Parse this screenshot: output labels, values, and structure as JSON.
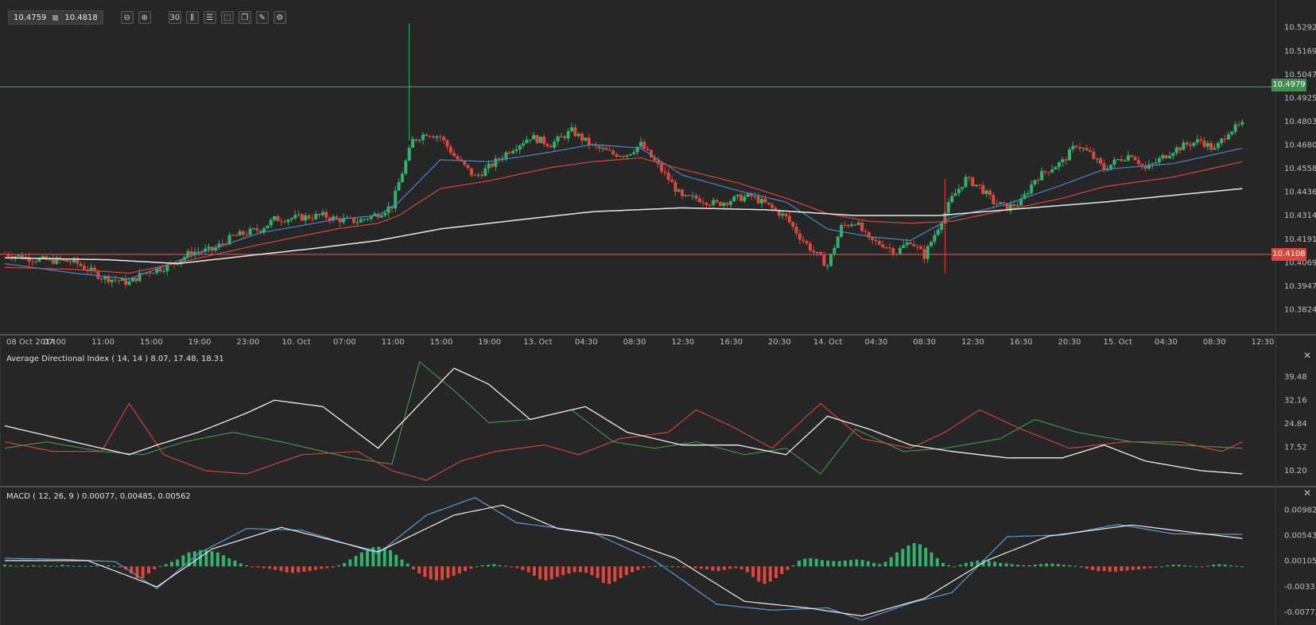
{
  "toolbar": {
    "bid": "10.4759",
    "ask": "10.4818",
    "buttons": [
      {
        "name": "zoom-out-icon",
        "glyph": "⊖"
      },
      {
        "name": "zoom-in-icon",
        "glyph": "⊕"
      },
      {
        "name": "timeframe-button",
        "glyph": "30"
      },
      {
        "name": "candlestick-icon",
        "glyph": "⫼"
      },
      {
        "name": "indicators-icon",
        "glyph": "☰"
      },
      {
        "name": "chart-template-icon",
        "glyph": "⬚"
      },
      {
        "name": "layers-icon",
        "glyph": "❐"
      },
      {
        "name": "draw-tool-icon",
        "glyph": "✎"
      },
      {
        "name": "settings-pen-icon",
        "glyph": "⚙"
      }
    ]
  },
  "price_axis": {
    "ticks": [
      "10.5292",
      "10.5169",
      "10.5047",
      "10.4925",
      "10.4803",
      "10.4680",
      "10.4558",
      "10.4436",
      "10.4314",
      "10.4191",
      "10.4069",
      "10.3947",
      "10.3824"
    ],
    "resistance": "10.4979",
    "support": "10.4108",
    "resistance_color": "#3f8f4f",
    "support_color": "#d9463b"
  },
  "time_axis": [
    "08 Oct 2014",
    "07:00",
    "11:00",
    "15:00",
    "19:00",
    "23:00",
    "10. Oct",
    "07:00",
    "11:00",
    "15:00",
    "19:00",
    "13. Oct",
    "04:30",
    "08:30",
    "12:30",
    "16:30",
    "20:30",
    "14. Oct",
    "04:30",
    "08:30",
    "12:30",
    "16:30",
    "20:30",
    "15. Oct",
    "04:30",
    "08:30",
    "12:30"
  ],
  "adx": {
    "label": "Average Directional Index ( 14, 14 ) 8.07, 17.48, 18.31",
    "ticks": [
      "39.48",
      "32.16",
      "24.84",
      "17.52",
      "10.20"
    ]
  },
  "macd": {
    "label": "MACD ( 12, 26, 9 ) 0.00077, 0.00485, 0.00562",
    "ticks": [
      "0.00982",
      "0.00543",
      "0.00105",
      "-0.00333",
      "-0.00772"
    ]
  },
  "chart_data": {
    "type": "candlestick",
    "price_ylim": [
      10.376,
      10.534
    ],
    "close_path": [
      [
        0,
        10.411
      ],
      [
        10,
        10.408
      ],
      [
        20,
        10.407
      ],
      [
        28,
        10.399
      ],
      [
        36,
        10.396
      ],
      [
        40,
        10.401
      ],
      [
        48,
        10.405
      ],
      [
        54,
        10.412
      ],
      [
        60,
        10.413
      ],
      [
        66,
        10.42
      ],
      [
        74,
        10.424
      ],
      [
        78,
        10.429
      ],
      [
        86,
        10.43
      ],
      [
        92,
        10.431
      ],
      [
        96,
        10.429
      ],
      [
        102,
        10.428
      ],
      [
        108,
        10.432
      ],
      [
        112,
        10.436
      ],
      [
        114,
        10.448
      ],
      [
        118,
        10.47
      ],
      [
        122,
        10.474
      ],
      [
        126,
        10.472
      ],
      [
        130,
        10.462
      ],
      [
        136,
        10.451
      ],
      [
        140,
        10.456
      ],
      [
        146,
        10.465
      ],
      [
        152,
        10.472
      ],
      [
        158,
        10.468
      ],
      [
        164,
        10.475
      ],
      [
        170,
        10.467
      ],
      [
        176,
        10.463
      ],
      [
        180,
        10.463
      ],
      [
        184,
        10.468
      ],
      [
        188,
        10.459
      ],
      [
        192,
        10.45
      ],
      [
        196,
        10.44
      ],
      [
        200,
        10.44
      ],
      [
        206,
        10.437
      ],
      [
        212,
        10.44
      ],
      [
        216,
        10.441
      ],
      [
        220,
        10.437
      ],
      [
        226,
        10.43
      ],
      [
        230,
        10.42
      ],
      [
        234,
        10.412
      ],
      [
        238,
        10.405
      ],
      [
        242,
        10.425
      ],
      [
        246,
        10.428
      ],
      [
        250,
        10.418
      ],
      [
        254,
        10.416
      ],
      [
        258,
        10.412
      ],
      [
        262,
        10.418
      ],
      [
        266,
        10.41
      ],
      [
        270,
        10.425
      ],
      [
        274,
        10.44
      ],
      [
        278,
        10.45
      ],
      [
        282,
        10.446
      ],
      [
        286,
        10.438
      ],
      [
        290,
        10.435
      ],
      [
        294,
        10.438
      ],
      [
        298,
        10.45
      ],
      [
        302,
        10.455
      ],
      [
        306,
        10.459
      ],
      [
        310,
        10.468
      ],
      [
        314,
        10.463
      ],
      [
        318,
        10.455
      ],
      [
        322,
        10.46
      ],
      [
        326,
        10.463
      ],
      [
        330,
        10.455
      ],
      [
        334,
        10.46
      ],
      [
        338,
        10.465
      ],
      [
        342,
        10.468
      ],
      [
        346,
        10.47
      ],
      [
        350,
        10.465
      ],
      [
        354,
        10.475
      ],
      [
        358,
        10.478
      ]
    ],
    "ema_fast_blue": [
      [
        0,
        10.406
      ],
      [
        20,
        10.401
      ],
      [
        36,
        10.398
      ],
      [
        54,
        10.41
      ],
      [
        74,
        10.422
      ],
      [
        96,
        10.429
      ],
      [
        108,
        10.431
      ],
      [
        114,
        10.438
      ],
      [
        126,
        10.46
      ],
      [
        140,
        10.459
      ],
      [
        158,
        10.464
      ],
      [
        170,
        10.468
      ],
      [
        184,
        10.466
      ],
      [
        196,
        10.452
      ],
      [
        212,
        10.444
      ],
      [
        226,
        10.438
      ],
      [
        238,
        10.424
      ],
      [
        250,
        10.42
      ],
      [
        262,
        10.418
      ],
      [
        274,
        10.43
      ],
      [
        290,
        10.437
      ],
      [
        306,
        10.447
      ],
      [
        318,
        10.455
      ],
      [
        338,
        10.458
      ],
      [
        358,
        10.466
      ]
    ],
    "ema_mid_red": [
      [
        0,
        10.404
      ],
      [
        20,
        10.403
      ],
      [
        36,
        10.401
      ],
      [
        54,
        10.408
      ],
      [
        74,
        10.416
      ],
      [
        96,
        10.424
      ],
      [
        108,
        10.427
      ],
      [
        114,
        10.431
      ],
      [
        126,
        10.445
      ],
      [
        140,
        10.449
      ],
      [
        158,
        10.456
      ],
      [
        170,
        10.459
      ],
      [
        184,
        10.461
      ],
      [
        196,
        10.455
      ],
      [
        212,
        10.448
      ],
      [
        226,
        10.44
      ],
      [
        238,
        10.432
      ],
      [
        250,
        10.428
      ],
      [
        262,
        10.427
      ],
      [
        274,
        10.428
      ],
      [
        290,
        10.434
      ],
      [
        306,
        10.44
      ],
      [
        318,
        10.446
      ],
      [
        338,
        10.451
      ],
      [
        358,
        10.459
      ]
    ],
    "sma_slow_white": [
      [
        0,
        10.409
      ],
      [
        30,
        10.408
      ],
      [
        50,
        10.406
      ],
      [
        70,
        10.41
      ],
      [
        90,
        10.414
      ],
      [
        108,
        10.418
      ],
      [
        126,
        10.424
      ],
      [
        150,
        10.429
      ],
      [
        170,
        10.433
      ],
      [
        196,
        10.435
      ],
      [
        220,
        10.434
      ],
      [
        246,
        10.431
      ],
      [
        270,
        10.431
      ],
      [
        290,
        10.434
      ],
      [
        318,
        10.438
      ],
      [
        358,
        10.445
      ]
    ],
    "adx_ylim": [
      6,
      44
    ],
    "adx_line_white": [
      [
        0,
        24
      ],
      [
        20,
        19
      ],
      [
        36,
        15
      ],
      [
        44,
        18
      ],
      [
        56,
        22
      ],
      [
        70,
        28
      ],
      [
        78,
        32
      ],
      [
        92,
        30
      ],
      [
        108,
        17
      ],
      [
        114,
        24
      ],
      [
        130,
        42
      ],
      [
        140,
        37
      ],
      [
        152,
        26
      ],
      [
        168,
        30
      ],
      [
        180,
        22
      ],
      [
        196,
        18
      ],
      [
        212,
        18
      ],
      [
        226,
        15
      ],
      [
        238,
        27
      ],
      [
        250,
        23
      ],
      [
        262,
        18
      ],
      [
        274,
        16
      ],
      [
        290,
        14
      ],
      [
        306,
        14
      ],
      [
        318,
        18
      ],
      [
        330,
        13
      ],
      [
        346,
        10
      ],
      [
        358,
        9
      ]
    ],
    "adx_plus_di_green": [
      [
        0,
        17
      ],
      [
        12,
        19
      ],
      [
        28,
        16
      ],
      [
        40,
        15
      ],
      [
        52,
        19
      ],
      [
        66,
        22
      ],
      [
        80,
        19
      ],
      [
        100,
        14
      ],
      [
        112,
        12
      ],
      [
        120,
        44
      ],
      [
        130,
        35
      ],
      [
        140,
        25
      ],
      [
        152,
        26
      ],
      [
        164,
        29
      ],
      [
        176,
        19
      ],
      [
        188,
        17
      ],
      [
        200,
        19
      ],
      [
        214,
        15
      ],
      [
        226,
        17
      ],
      [
        236,
        9
      ],
      [
        246,
        23
      ],
      [
        260,
        16
      ],
      [
        272,
        17
      ],
      [
        288,
        20
      ],
      [
        298,
        26
      ],
      [
        310,
        22
      ],
      [
        326,
        19
      ],
      [
        340,
        18
      ],
      [
        358,
        17
      ]
    ],
    "adx_minus_di_red": [
      [
        0,
        19
      ],
      [
        14,
        16
      ],
      [
        28,
        16
      ],
      [
        36,
        31
      ],
      [
        46,
        15
      ],
      [
        58,
        10
      ],
      [
        70,
        9
      ],
      [
        86,
        15
      ],
      [
        102,
        16
      ],
      [
        112,
        10
      ],
      [
        122,
        7
      ],
      [
        132,
        13
      ],
      [
        142,
        16
      ],
      [
        156,
        18
      ],
      [
        166,
        15
      ],
      [
        178,
        20
      ],
      [
        192,
        22
      ],
      [
        200,
        29
      ],
      [
        210,
        24
      ],
      [
        222,
        17
      ],
      [
        236,
        31
      ],
      [
        248,
        20
      ],
      [
        262,
        17
      ],
      [
        272,
        22
      ],
      [
        282,
        29
      ],
      [
        294,
        23
      ],
      [
        308,
        17
      ],
      [
        324,
        19
      ],
      [
        340,
        19
      ],
      [
        352,
        16
      ],
      [
        358,
        19
      ]
    ],
    "macd_ylim": [
      -0.0095,
      0.0115
    ],
    "macd_line_blue": [
      [
        0,
        0.0014
      ],
      [
        18,
        0.0012
      ],
      [
        32,
        0.0008
      ],
      [
        44,
        -0.0038
      ],
      [
        56,
        0.0022
      ],
      [
        70,
        0.0065
      ],
      [
        86,
        0.0062
      ],
      [
        108,
        0.0022
      ],
      [
        122,
        0.0088
      ],
      [
        136,
        0.0118
      ],
      [
        148,
        0.0075
      ],
      [
        170,
        0.0058
      ],
      [
        188,
        0.001
      ],
      [
        206,
        -0.0065
      ],
      [
        222,
        -0.0075
      ],
      [
        238,
        -0.0071
      ],
      [
        248,
        -0.0092
      ],
      [
        262,
        -0.0063
      ],
      [
        274,
        -0.0045
      ],
      [
        290,
        0.0051
      ],
      [
        306,
        0.0054
      ],
      [
        322,
        0.0072
      ],
      [
        338,
        0.0056
      ],
      [
        358,
        0.0055
      ]
    ],
    "macd_signal_white": [
      [
        0,
        0.001
      ],
      [
        24,
        0.001
      ],
      [
        44,
        -0.0035
      ],
      [
        60,
        0.003
      ],
      [
        80,
        0.0067
      ],
      [
        108,
        0.0025
      ],
      [
        130,
        0.0088
      ],
      [
        144,
        0.0105
      ],
      [
        160,
        0.0065
      ],
      [
        176,
        0.0052
      ],
      [
        194,
        0.0014
      ],
      [
        214,
        -0.006
      ],
      [
        232,
        -0.0071
      ],
      [
        248,
        -0.0085
      ],
      [
        266,
        -0.0055
      ],
      [
        284,
        0.001
      ],
      [
        302,
        0.0052
      ],
      [
        326,
        0.0071
      ],
      [
        358,
        0.0048
      ]
    ],
    "macd_histogram": [
      0.0003,
      0.0002,
      0.0001,
      0.0002,
      0.0001,
      0.0002,
      0.0001,
      0.0002,
      0.0001,
      0.0001,
      0.0003,
      0.0002,
      0.0001,
      0.0001,
      0.0001,
      0.0001,
      0.0002,
      0.0002,
      0.0002,
      0.0001,
      -0.0002,
      -0.0005,
      -0.0012,
      -0.002,
      -0.002,
      -0.0012,
      -0.0005,
      0.0001,
      0.0004,
      0.0008,
      0.0012,
      0.0019,
      0.0024,
      0.0026,
      0.0028,
      0.0028,
      0.0026,
      0.0024,
      0.0019,
      0.0014,
      0.001,
      0.0005,
      0.0002,
      -0.0001,
      -0.0002,
      -0.0003,
      -0.0004,
      -0.0006,
      -0.0008,
      -0.001,
      -0.0011,
      -0.001,
      -0.0009,
      -0.0008,
      -0.0006,
      -0.0004,
      -0.0003,
      -0.0002,
      0.0002,
      0.0006,
      0.0012,
      0.0018,
      0.0024,
      0.0029,
      0.0033,
      0.0034,
      0.0032,
      0.0028,
      0.002,
      0.0012,
      0.0005,
      -0.0005,
      -0.0012,
      -0.0018,
      -0.0022,
      -0.0024,
      -0.0023,
      -0.002,
      -0.0016,
      -0.0012,
      -0.0008,
      -0.0004,
      0.0,
      0.0002,
      0.0003,
      0.0004,
      0.0002,
      0.0001,
      -0.0001,
      -0.0003,
      -0.0006,
      -0.001,
      -0.0016,
      -0.0022,
      -0.0024,
      -0.0022,
      -0.0018,
      -0.0015,
      -0.0012,
      -0.001,
      -0.001,
      -0.0011,
      -0.0015,
      -0.002,
      -0.0028,
      -0.003,
      -0.0026,
      -0.002,
      -0.0015,
      -0.001,
      -0.0006,
      -0.0003,
      -0.0001,
      0.0001,
      0.0002,
      0.0001,
      0.0,
      -0.0001,
      -0.0002,
      -0.0002,
      -0.0003,
      -0.0004,
      -0.0005,
      -0.0007,
      -0.0008,
      -0.0006,
      -0.0004,
      -0.0003,
      -0.0005,
      -0.001,
      -0.0018,
      -0.0026,
      -0.003,
      -0.0026,
      -0.002,
      -0.0013,
      -0.0006,
      0.0002,
      0.001,
      0.0013,
      0.0014,
      0.0013,
      0.0011,
      0.001,
      0.0009,
      0.0009,
      0.001,
      0.0011,
      0.0012,
      0.0011,
      0.0009,
      0.0006,
      0.0004,
      0.0008,
      0.0016,
      0.0024,
      0.003,
      0.0036,
      0.004,
      0.0038,
      0.0032,
      0.0024,
      0.0014,
      0.0006,
      0.0002,
      0.0,
      0.0003,
      0.0006,
      0.0008,
      0.001,
      0.0011,
      0.001,
      0.0008,
      0.0006,
      0.0005,
      0.0004,
      0.0003,
      0.0002,
      0.0002,
      0.0003,
      0.0004,
      0.0005,
      0.0005,
      0.0004,
      0.0003,
      0.0002,
      0.0001,
      -0.0002,
      -0.0004,
      -0.0006,
      -0.0008,
      -0.0008,
      -0.0009,
      -0.0009,
      -0.0008,
      -0.0007,
      -0.0006,
      -0.0005,
      -0.0004,
      -0.0003,
      -0.0002,
      0.0,
      0.0002,
      0.0003,
      0.0003,
      0.0002,
      0.0001,
      0.0,
      -0.0001,
      0.0001,
      0.0003,
      0.0004,
      0.0003,
      0.0002,
      0.0001,
      0.0
    ]
  }
}
